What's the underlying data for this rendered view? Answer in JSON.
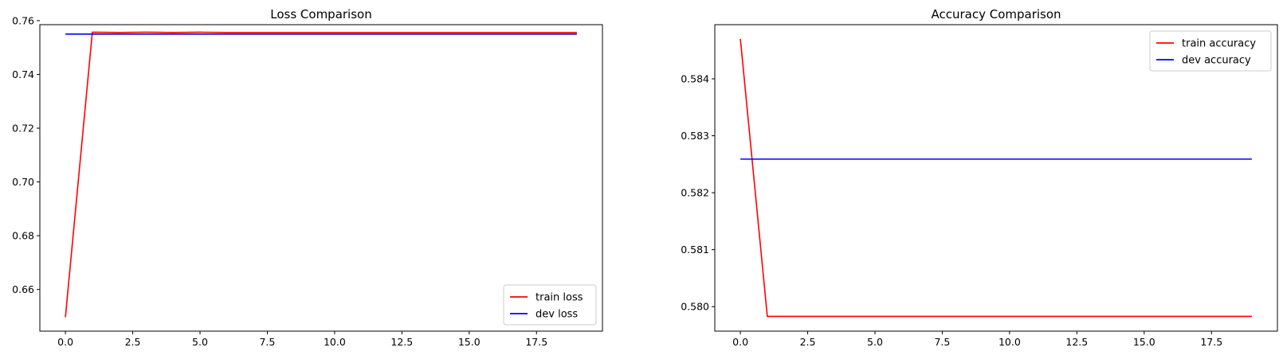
{
  "chart_data": [
    {
      "type": "line",
      "title": "Loss Comparison",
      "xlabel": "",
      "ylabel": "",
      "x": [
        0,
        1,
        2,
        3,
        4,
        5,
        6,
        7,
        8,
        9,
        10,
        11,
        12,
        13,
        14,
        15,
        16,
        17,
        18,
        19
      ],
      "xlim": [
        -0.95,
        19.95
      ],
      "ylim": [
        0.6445,
        0.7585
      ],
      "xticks": [
        0,
        2.5,
        5,
        7.5,
        10,
        12.5,
        15,
        17.5
      ],
      "xtick_labels": [
        "0.0",
        "2.5",
        "5.0",
        "7.5",
        "10.0",
        "12.5",
        "15.0",
        "17.5"
      ],
      "yticks": [
        0.66,
        0.68,
        0.7,
        0.72,
        0.74,
        0.76
      ],
      "ytick_labels": [
        "0.66",
        "0.68",
        "0.70",
        "0.72",
        "0.74",
        "0.76"
      ],
      "grid": false,
      "legend_position": "lower-right",
      "series": [
        {
          "name": "train loss",
          "color": "#ff0000",
          "values": [
            0.6497,
            0.7557,
            0.7556,
            0.7557,
            0.7556,
            0.7557,
            0.7556,
            0.7556,
            0.7556,
            0.7556,
            0.7556,
            0.7556,
            0.7556,
            0.7556,
            0.7556,
            0.7556,
            0.7556,
            0.7556,
            0.7556,
            0.7556
          ]
        },
        {
          "name": "dev loss",
          "color": "#0000ff",
          "values": [
            0.755,
            0.755,
            0.755,
            0.755,
            0.755,
            0.755,
            0.755,
            0.755,
            0.755,
            0.755,
            0.755,
            0.755,
            0.755,
            0.755,
            0.755,
            0.755,
            0.755,
            0.755,
            0.755,
            0.755
          ]
        }
      ]
    },
    {
      "type": "line",
      "title": "Accuracy Comparison",
      "xlabel": "",
      "ylabel": "",
      "x": [
        0,
        1,
        2,
        3,
        4,
        5,
        6,
        7,
        8,
        9,
        10,
        11,
        12,
        13,
        14,
        15,
        16,
        17,
        18,
        19
      ],
      "xlim": [
        -0.95,
        19.95
      ],
      "ylim": [
        0.57957,
        0.58495
      ],
      "xticks": [
        0,
        2.5,
        5,
        7.5,
        10,
        12.5,
        15,
        17.5
      ],
      "xtick_labels": [
        "0.0",
        "2.5",
        "5.0",
        "7.5",
        "10.0",
        "12.5",
        "15.0",
        "17.5"
      ],
      "yticks": [
        0.58,
        0.581,
        0.582,
        0.583,
        0.584
      ],
      "ytick_labels": [
        "0.580",
        "0.581",
        "0.582",
        "0.583",
        "0.584"
      ],
      "grid": false,
      "legend_position": "upper-right",
      "series": [
        {
          "name": "train accuracy",
          "color": "#ff0000",
          "values": [
            0.5847,
            0.57983,
            0.57983,
            0.57983,
            0.57983,
            0.57983,
            0.57983,
            0.57983,
            0.57983,
            0.57983,
            0.57983,
            0.57983,
            0.57983,
            0.57983,
            0.57983,
            0.57983,
            0.57983,
            0.57983,
            0.57983,
            0.57983
          ]
        },
        {
          "name": "dev accuracy",
          "color": "#0000ff",
          "values": [
            0.58259,
            0.58259,
            0.58259,
            0.58259,
            0.58259,
            0.58259,
            0.58259,
            0.58259,
            0.58259,
            0.58259,
            0.58259,
            0.58259,
            0.58259,
            0.58259,
            0.58259,
            0.58259,
            0.58259,
            0.58259,
            0.58259,
            0.58259
          ]
        }
      ]
    }
  ]
}
